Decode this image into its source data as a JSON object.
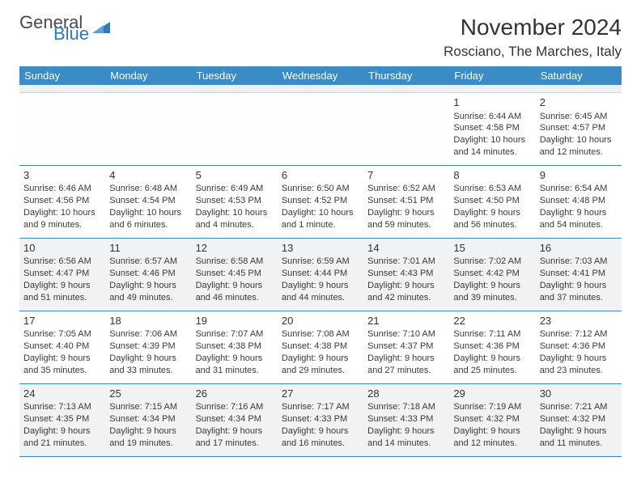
{
  "brand": {
    "text1": "General",
    "text2": "Blue"
  },
  "title": "November 2024",
  "location": "Rosciano, The Marches, Italy",
  "weekdays": [
    "Sunday",
    "Monday",
    "Tuesday",
    "Wednesday",
    "Thursday",
    "Friday",
    "Saturday"
  ],
  "colors": {
    "header_bg": "#3b8bc7",
    "header_text": "#ffffff",
    "alt_row_bg": "#f1f2f3",
    "text": "#3a3a3a",
    "rule": "#3b8bc7"
  },
  "typography": {
    "title_fontsize": 28,
    "location_fontsize": 17,
    "weekday_fontsize": 13,
    "daynum_fontsize": 13,
    "body_fontsize": 11
  },
  "layout": {
    "cols": 7,
    "rows": 5,
    "first_weekday_index": 5
  },
  "days": [
    {
      "n": 1,
      "sunrise": "6:44 AM",
      "sunset": "4:58 PM",
      "daylight": "10 hours and 14 minutes."
    },
    {
      "n": 2,
      "sunrise": "6:45 AM",
      "sunset": "4:57 PM",
      "daylight": "10 hours and 12 minutes."
    },
    {
      "n": 3,
      "sunrise": "6:46 AM",
      "sunset": "4:56 PM",
      "daylight": "10 hours and 9 minutes."
    },
    {
      "n": 4,
      "sunrise": "6:48 AM",
      "sunset": "4:54 PM",
      "daylight": "10 hours and 6 minutes."
    },
    {
      "n": 5,
      "sunrise": "6:49 AM",
      "sunset": "4:53 PM",
      "daylight": "10 hours and 4 minutes."
    },
    {
      "n": 6,
      "sunrise": "6:50 AM",
      "sunset": "4:52 PM",
      "daylight": "10 hours and 1 minute."
    },
    {
      "n": 7,
      "sunrise": "6:52 AM",
      "sunset": "4:51 PM",
      "daylight": "9 hours and 59 minutes."
    },
    {
      "n": 8,
      "sunrise": "6:53 AM",
      "sunset": "4:50 PM",
      "daylight": "9 hours and 56 minutes."
    },
    {
      "n": 9,
      "sunrise": "6:54 AM",
      "sunset": "4:48 PM",
      "daylight": "9 hours and 54 minutes."
    },
    {
      "n": 10,
      "sunrise": "6:56 AM",
      "sunset": "4:47 PM",
      "daylight": "9 hours and 51 minutes."
    },
    {
      "n": 11,
      "sunrise": "6:57 AM",
      "sunset": "4:46 PM",
      "daylight": "9 hours and 49 minutes."
    },
    {
      "n": 12,
      "sunrise": "6:58 AM",
      "sunset": "4:45 PM",
      "daylight": "9 hours and 46 minutes."
    },
    {
      "n": 13,
      "sunrise": "6:59 AM",
      "sunset": "4:44 PM",
      "daylight": "9 hours and 44 minutes."
    },
    {
      "n": 14,
      "sunrise": "7:01 AM",
      "sunset": "4:43 PM",
      "daylight": "9 hours and 42 minutes."
    },
    {
      "n": 15,
      "sunrise": "7:02 AM",
      "sunset": "4:42 PM",
      "daylight": "9 hours and 39 minutes."
    },
    {
      "n": 16,
      "sunrise": "7:03 AM",
      "sunset": "4:41 PM",
      "daylight": "9 hours and 37 minutes."
    },
    {
      "n": 17,
      "sunrise": "7:05 AM",
      "sunset": "4:40 PM",
      "daylight": "9 hours and 35 minutes."
    },
    {
      "n": 18,
      "sunrise": "7:06 AM",
      "sunset": "4:39 PM",
      "daylight": "9 hours and 33 minutes."
    },
    {
      "n": 19,
      "sunrise": "7:07 AM",
      "sunset": "4:38 PM",
      "daylight": "9 hours and 31 minutes."
    },
    {
      "n": 20,
      "sunrise": "7:08 AM",
      "sunset": "4:38 PM",
      "daylight": "9 hours and 29 minutes."
    },
    {
      "n": 21,
      "sunrise": "7:10 AM",
      "sunset": "4:37 PM",
      "daylight": "9 hours and 27 minutes."
    },
    {
      "n": 22,
      "sunrise": "7:11 AM",
      "sunset": "4:36 PM",
      "daylight": "9 hours and 25 minutes."
    },
    {
      "n": 23,
      "sunrise": "7:12 AM",
      "sunset": "4:36 PM",
      "daylight": "9 hours and 23 minutes."
    },
    {
      "n": 24,
      "sunrise": "7:13 AM",
      "sunset": "4:35 PM",
      "daylight": "9 hours and 21 minutes."
    },
    {
      "n": 25,
      "sunrise": "7:15 AM",
      "sunset": "4:34 PM",
      "daylight": "9 hours and 19 minutes."
    },
    {
      "n": 26,
      "sunrise": "7:16 AM",
      "sunset": "4:34 PM",
      "daylight": "9 hours and 17 minutes."
    },
    {
      "n": 27,
      "sunrise": "7:17 AM",
      "sunset": "4:33 PM",
      "daylight": "9 hours and 16 minutes."
    },
    {
      "n": 28,
      "sunrise": "7:18 AM",
      "sunset": "4:33 PM",
      "daylight": "9 hours and 14 minutes."
    },
    {
      "n": 29,
      "sunrise": "7:19 AM",
      "sunset": "4:32 PM",
      "daylight": "9 hours and 12 minutes."
    },
    {
      "n": 30,
      "sunrise": "7:21 AM",
      "sunset": "4:32 PM",
      "daylight": "9 hours and 11 minutes."
    }
  ]
}
